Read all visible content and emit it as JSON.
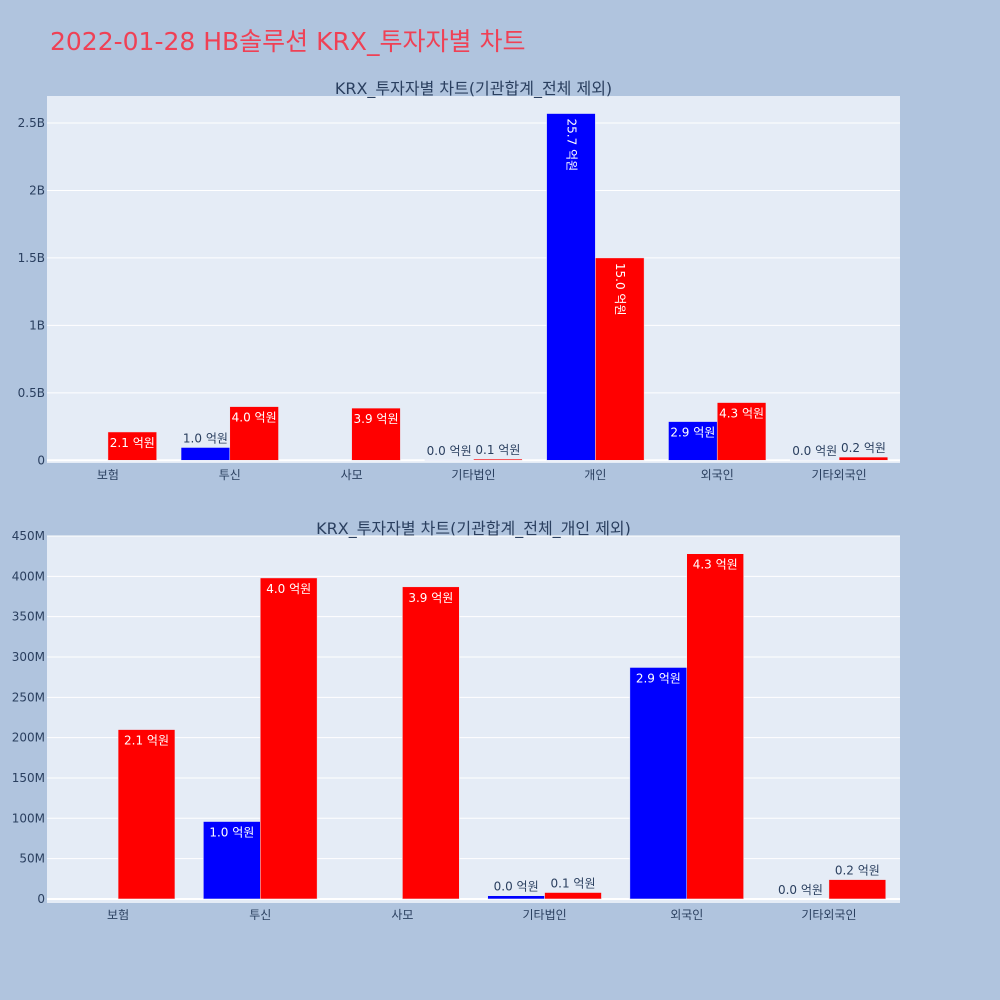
{
  "page": {
    "title": "2022-01-28 HB솔루션 KRX_투자자별 차트"
  },
  "colors": {
    "background": "#b0c4de",
    "plot_bg": "#e5ecf6",
    "series_a": "#0000ff",
    "series_b": "#ff0000",
    "title": "#ef4155"
  },
  "chart_data": [
    {
      "type": "bar",
      "title": "KRX_투자자별 차트(기관합계_전체 제외)",
      "categories": [
        "보험",
        "투신",
        "사모",
        "기타법인",
        "개인",
        "외국인",
        "기타외국인"
      ],
      "series": [
        {
          "color": "#0000ff",
          "values": [
            0,
            95000000,
            0,
            4000000,
            2570000000,
            287000000,
            3000000
          ],
          "labels": [
            "",
            "1.0 억원",
            "",
            "0.0 억원",
            "25.7 억원",
            "2.9 억원",
            "0.0 억원"
          ]
        },
        {
          "color": "#ff0000",
          "values": [
            210000000,
            398000000,
            387000000,
            9000000,
            1500000000,
            428000000,
            24000000
          ],
          "labels": [
            "2.1 억원",
            "4.0 억원",
            "3.9 억원",
            "0.1 억원",
            "15.0 억원",
            "4.3 억원",
            "0.2 억원"
          ]
        }
      ],
      "yticks": [
        0,
        500000000,
        1000000000,
        1500000000,
        2000000000,
        2500000000
      ],
      "ytick_labels": [
        "0",
        "0.5B",
        "1B",
        "1.5B",
        "2B",
        "2.5B"
      ],
      "ylim": [
        -20000000,
        2700000000
      ],
      "xlabel": "",
      "ylabel": "",
      "grid": true
    },
    {
      "type": "bar",
      "title": "KRX_투자자별 차트(기관합계_전체_개인 제외)",
      "categories": [
        "보험",
        "투신",
        "사모",
        "기타법인",
        "외국인",
        "기타외국인"
      ],
      "series": [
        {
          "color": "#0000ff",
          "values": [
            0,
            96000000,
            0,
            4000000,
            287000000,
            0
          ],
          "labels": [
            "",
            "1.0 억원",
            "",
            "0.0 억원",
            "2.9 억원",
            "0.0 억원"
          ]
        },
        {
          "color": "#ff0000",
          "values": [
            210000000,
            398000000,
            387000000,
            8000000,
            428000000,
            24000000
          ],
          "labels": [
            "2.1 억원",
            "4.0 억원",
            "3.9 억원",
            "0.1 억원",
            "4.3 억원",
            "0.2 억원"
          ]
        }
      ],
      "yticks": [
        0,
        50000000,
        100000000,
        150000000,
        200000000,
        250000000,
        300000000,
        350000000,
        400000000,
        450000000
      ],
      "ytick_labels": [
        "0",
        "50M",
        "100M",
        "150M",
        "200M",
        "250M",
        "300M",
        "350M",
        "400M",
        "450M"
      ],
      "ylim": [
        -5000000,
        450000000
      ],
      "xlabel": "",
      "ylabel": "",
      "grid": true
    }
  ]
}
